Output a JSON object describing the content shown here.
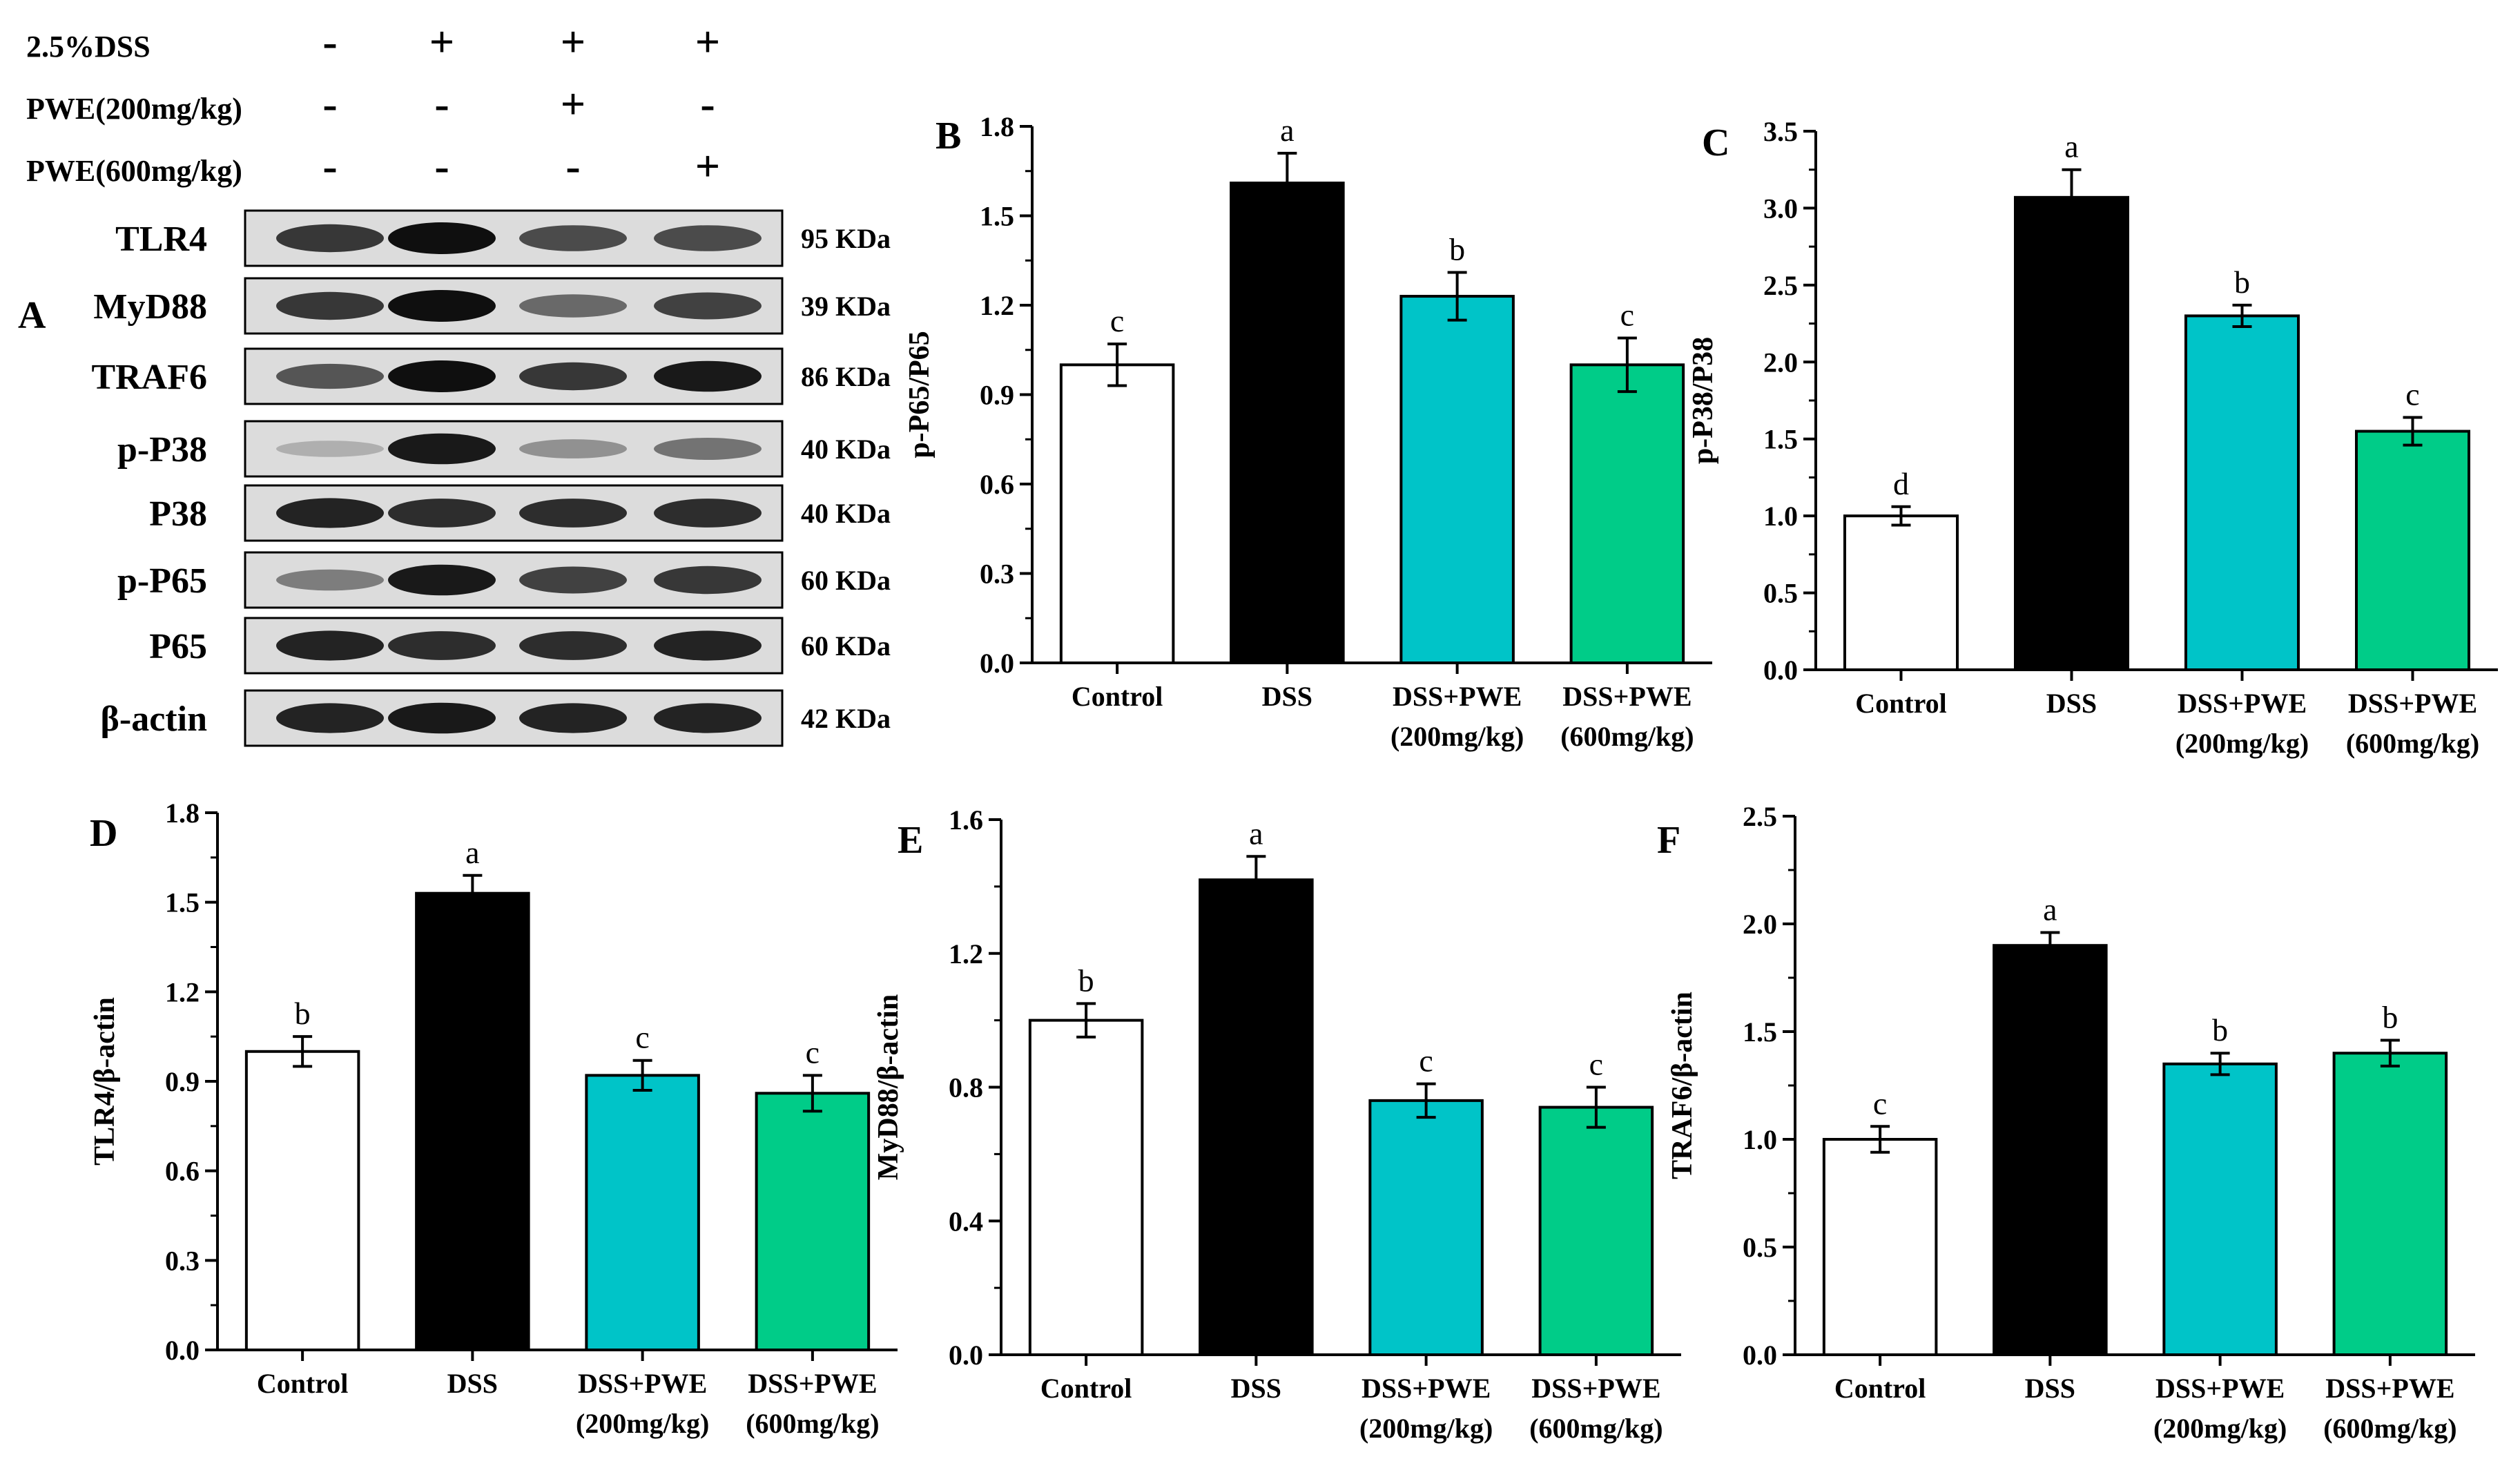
{
  "colors": {
    "control": "#ffffff",
    "dss": "#000000",
    "pwe200": "#00c4c8",
    "pwe600": "#00cc88"
  },
  "western_blot": {
    "panel_label": "A",
    "treatments": [
      {
        "label": "2.5%DSS",
        "marks": [
          "-",
          "+",
          "+",
          "+"
        ]
      },
      {
        "label": "PWE(200mg/kg)",
        "marks": [
          "-",
          "-",
          "+",
          "-"
        ]
      },
      {
        "label": "PWE(600mg/kg)",
        "marks": [
          "-",
          "-",
          "-",
          "+"
        ]
      }
    ],
    "bands": [
      {
        "protein": "TLR4",
        "size": "95 KDa",
        "intensity": [
          0.8,
          1.0,
          0.7,
          0.7
        ]
      },
      {
        "protein": "MyD88",
        "size": "39 KDa",
        "intensity": [
          0.8,
          1.0,
          0.55,
          0.75
        ]
      },
      {
        "protein": "TRAF6",
        "size": "86 KDa",
        "intensity": [
          0.65,
          1.0,
          0.8,
          0.95
        ]
      },
      {
        "protein": "p-P38",
        "size": "40 KDa",
        "intensity": [
          0.2,
          0.95,
          0.35,
          0.5
        ]
      },
      {
        "protein": "P38",
        "size": "40 KDa",
        "intensity": [
          0.9,
          0.85,
          0.85,
          0.85
        ]
      },
      {
        "protein": "p-P65",
        "size": "60 KDa",
        "intensity": [
          0.45,
          0.95,
          0.75,
          0.8
        ]
      },
      {
        "protein": "P65",
        "size": "60 KDa",
        "intensity": [
          0.9,
          0.85,
          0.85,
          0.9
        ]
      },
      {
        "protein": "β-actin",
        "size": "42 KDa",
        "intensity": [
          0.9,
          0.95,
          0.9,
          0.9
        ]
      }
    ]
  },
  "chart_data": [
    {
      "panel": "B",
      "type": "bar",
      "ylabel": "p-P65/P65",
      "categories": [
        [
          "Control"
        ],
        [
          "DSS"
        ],
        [
          "DSS+PWE",
          "(200mg/kg)"
        ],
        [
          "DSS+PWE",
          "(600mg/kg)"
        ]
      ],
      "values": [
        1.0,
        1.61,
        1.23,
        1.0
      ],
      "errors": [
        0.07,
        0.1,
        0.08,
        0.09
      ],
      "letters": [
        "c",
        "a",
        "b",
        "c"
      ],
      "ylim": [
        0,
        1.8
      ],
      "yticks": [
        "0.0",
        "0.3",
        "0.6",
        "0.9",
        "1.2",
        "1.5",
        "1.8"
      ]
    },
    {
      "panel": "C",
      "type": "bar",
      "ylabel": "p-P38/P38",
      "categories": [
        [
          "Control"
        ],
        [
          "DSS"
        ],
        [
          "DSS+PWE",
          "(200mg/kg)"
        ],
        [
          "DSS+PWE",
          "(600mg/kg)"
        ]
      ],
      "values": [
        1.0,
        3.07,
        2.3,
        1.55
      ],
      "errors": [
        0.06,
        0.18,
        0.07,
        0.09
      ],
      "letters": [
        "d",
        "a",
        "b",
        "c"
      ],
      "ylim": [
        0,
        3.5
      ],
      "yticks": [
        "0.0",
        "0.5",
        "1.0",
        "1.5",
        "2.0",
        "2.5",
        "3.0",
        "3.5"
      ]
    },
    {
      "panel": "D",
      "type": "bar",
      "ylabel": "TLR4/β-actin",
      "categories": [
        [
          "Control"
        ],
        [
          "DSS"
        ],
        [
          "DSS+PWE",
          "(200mg/kg)"
        ],
        [
          "DSS+PWE",
          "(600mg/kg)"
        ]
      ],
      "values": [
        1.0,
        1.53,
        0.92,
        0.86
      ],
      "errors": [
        0.05,
        0.06,
        0.05,
        0.06
      ],
      "letters": [
        "b",
        "a",
        "c",
        "c"
      ],
      "ylim": [
        0,
        1.8
      ],
      "yticks": [
        "0.0",
        "0.3",
        "0.6",
        "0.9",
        "1.2",
        "1.5",
        "1.8"
      ]
    },
    {
      "panel": "E",
      "type": "bar",
      "ylabel": "MyD88/β-actin",
      "categories": [
        [
          "Control"
        ],
        [
          "DSS"
        ],
        [
          "DSS+PWE",
          "(200mg/kg)"
        ],
        [
          "DSS+PWE",
          "(600mg/kg)"
        ]
      ],
      "values": [
        1.0,
        1.42,
        0.76,
        0.74
      ],
      "errors": [
        0.05,
        0.07,
        0.05,
        0.06
      ],
      "letters": [
        "b",
        "a",
        "c",
        "c"
      ],
      "ylim": [
        0,
        1.6
      ],
      "yticks": [
        "0.0",
        "0.4",
        "0.8",
        "1.2",
        "1.6"
      ]
    },
    {
      "panel": "F",
      "type": "bar",
      "ylabel": "TRAF6/β-actin",
      "categories": [
        [
          "Control"
        ],
        [
          "DSS"
        ],
        [
          "DSS+PWE",
          "(200mg/kg)"
        ],
        [
          "DSS+PWE",
          "(600mg/kg)"
        ]
      ],
      "values": [
        1.0,
        1.9,
        1.35,
        1.4
      ],
      "errors": [
        0.06,
        0.06,
        0.05,
        0.06
      ],
      "letters": [
        "c",
        "a",
        "b",
        "b"
      ],
      "ylim": [
        0,
        2.5
      ],
      "yticks": [
        "0.0",
        "0.5",
        "1.0",
        "1.5",
        "2.0",
        "2.5"
      ]
    }
  ]
}
